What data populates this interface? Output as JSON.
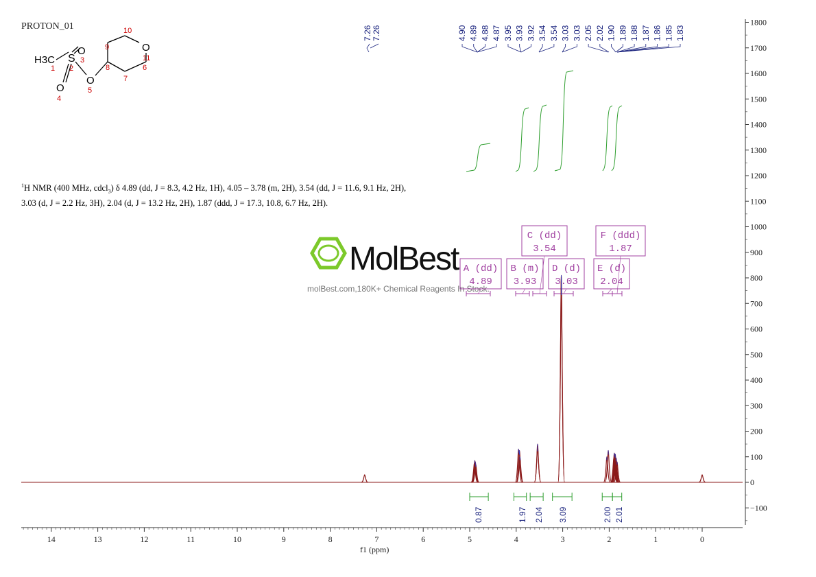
{
  "sample_name": "PROTON_01",
  "nmr_description": {
    "prefix": "H NMR (400 MHz, cdcl",
    "suffix": ") δ 4.89 (dd, J = 8.3, 4.2 Hz, 1H), 4.05 – 3.78 (m, 2H), 3.54 (dd, J = 11.6, 9.1 Hz, 2H), 3.03 (d, J = 2.2 Hz, 3H), 2.04 (d, J = 13.2 Hz, 2H), 1.87 (ddd, J = 17.3, 10.8, 6.7 Hz, 2H).",
    "sup": "1",
    "sub": "3"
  },
  "structure": {
    "atoms": [
      "H3C",
      "S",
      "O",
      "O",
      "O",
      "O"
    ],
    "numbers": [
      "1",
      "2",
      "3",
      "4",
      "5",
      "6",
      "7",
      "8",
      "9",
      "10",
      "11"
    ]
  },
  "watermark": {
    "brand": "MolBest",
    "tagline": "molBest.com,180K+ Chemical Reagents In Stock."
  },
  "colors": {
    "spectrum": "#8b1a1a",
    "peak_labels": "#1a237e",
    "integral": "#2e9e2e",
    "multiplet": "#a040a0",
    "axis": "#333333"
  },
  "chart_data": {
    "type": "line",
    "xlabel": "f1 (ppm)",
    "x_reversed": true,
    "xlim": [
      14.8,
      -0.9
    ],
    "x_ticks": [
      14,
      13,
      12,
      11,
      10,
      9,
      8,
      7,
      6,
      5,
      4,
      3,
      2,
      1,
      0
    ],
    "ylim": [
      -150,
      1800
    ],
    "y_ticks": [
      1800,
      1700,
      1600,
      1500,
      1400,
      1300,
      1200,
      1100,
      1000,
      900,
      800,
      700,
      600,
      500,
      400,
      300,
      200,
      100,
      0,
      -100
    ],
    "peaks": [
      {
        "ppm": 7.26,
        "height": 30
      },
      {
        "ppm": 4.9,
        "height": 75
      },
      {
        "ppm": 4.89,
        "height": 85
      },
      {
        "ppm": 4.88,
        "height": 80
      },
      {
        "ppm": 4.87,
        "height": 70
      },
      {
        "ppm": 3.95,
        "height": 130
      },
      {
        "ppm": 3.93,
        "height": 125
      },
      {
        "ppm": 3.92,
        "height": 100
      },
      {
        "ppm": 3.54,
        "height": 150
      },
      {
        "ppm": 3.54,
        "height": 140
      },
      {
        "ppm": 3.03,
        "height": 810
      },
      {
        "ppm": 3.03,
        "height": 800
      },
      {
        "ppm": 2.05,
        "height": 100
      },
      {
        "ppm": 2.02,
        "height": 125
      },
      {
        "ppm": 1.9,
        "height": 95
      },
      {
        "ppm": 1.89,
        "height": 115
      },
      {
        "ppm": 1.88,
        "height": 105
      },
      {
        "ppm": 1.87,
        "height": 110
      },
      {
        "ppm": 1.86,
        "height": 90
      },
      {
        "ppm": 1.85,
        "height": 95
      },
      {
        "ppm": 1.83,
        "height": 80
      },
      {
        "ppm": 0.0,
        "height": 30
      }
    ],
    "peak_labels_7": [
      "7.26",
      "7.26"
    ],
    "peak_labels_group": [
      "4.90",
      "4.89",
      "4.88",
      "4.87",
      "3.95",
      "3.93",
      "3.92",
      "3.54",
      "3.54",
      "3.03",
      "3.03",
      "2.05",
      "2.02",
      "1.90",
      "1.89",
      "1.88",
      "1.87",
      "1.86",
      "1.85",
      "1.83"
    ],
    "integrals": [
      {
        "from": 5.0,
        "to": 4.6,
        "value": "0.87"
      },
      {
        "from": 4.05,
        "to": 3.78,
        "value": "1.97"
      },
      {
        "from": 3.7,
        "to": 3.42,
        "value": "2.04"
      },
      {
        "from": 3.22,
        "to": 2.8,
        "value": "3.09"
      },
      {
        "from": 2.15,
        "to": 1.93,
        "value": "2.00"
      },
      {
        "from": 1.93,
        "to": 1.73,
        "value": "2.01"
      }
    ],
    "multiplets": [
      {
        "label": "A (dd)",
        "value": "4.89"
      },
      {
        "label": "B (m)",
        "value": "3.93"
      },
      {
        "label": "C (dd)",
        "value": "3.54"
      },
      {
        "label": "D (d)",
        "value": "3.03"
      },
      {
        "label": "E (d)",
        "value": "2.04"
      },
      {
        "label": "F (ddd)",
        "value": "1.87"
      }
    ]
  }
}
